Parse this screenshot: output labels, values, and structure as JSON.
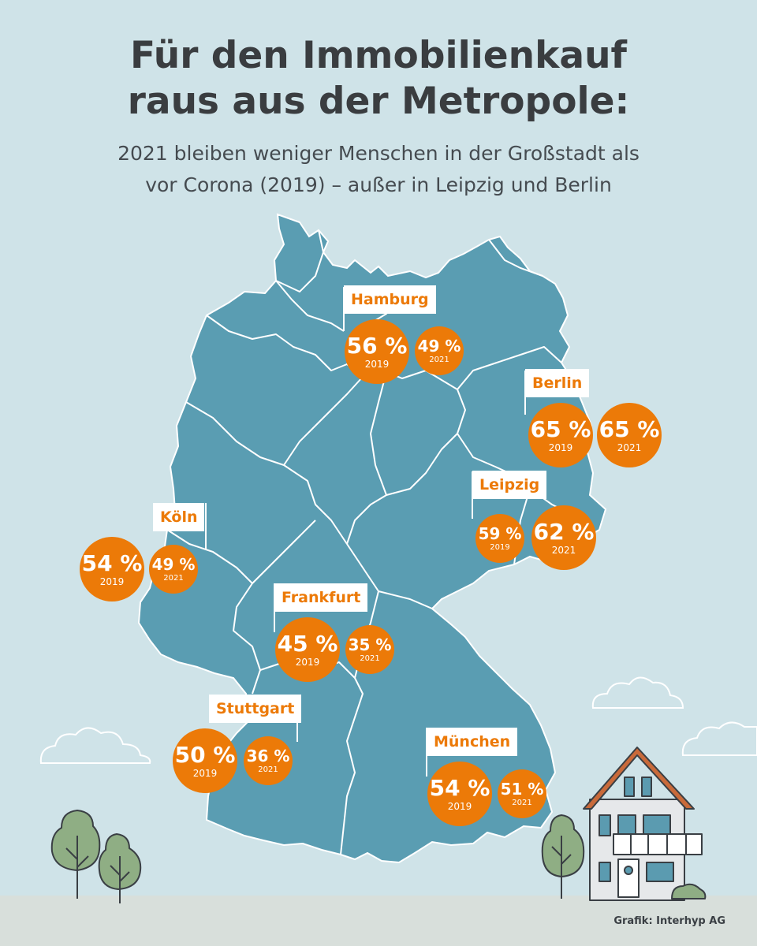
{
  "title": "Für den Immobilienkauf raus aus der Metropole:",
  "title_line1": "Für den Immobilienkauf",
  "title_line2": "raus aus der Metropole:",
  "subtitle_line1": "2021 bleiben weniger Menschen in der Großstadt als",
  "subtitle_line2": "vor Corona (2019) – außer in Leipzig und Berlin",
  "colors": {
    "background": "#cfe3e8",
    "map_fill": "#5a9db2",
    "border": "#ffffff",
    "accent": "#ec7a08",
    "ground": "#d8dfdb",
    "tree": "#8fae84"
  },
  "cities": [
    {
      "name": "Hamburg",
      "v2019": "56 %",
      "v2021": "49 %",
      "y2019": "2019",
      "y2021": "2021"
    },
    {
      "name": "Berlin",
      "v2019": "65 %",
      "v2021": "65 %",
      "y2019": "2019",
      "y2021": "2021"
    },
    {
      "name": "Leipzig",
      "v2019": "59 %",
      "v2021": "62 %",
      "y2019": "2019",
      "y2021": "2021"
    },
    {
      "name": "Köln",
      "v2019": "54 %",
      "v2021": "49 %",
      "y2019": "2019",
      "y2021": "2021"
    },
    {
      "name": "Frankfurt",
      "v2019": "45 %",
      "v2021": "35 %",
      "y2019": "2019",
      "y2021": "2021"
    },
    {
      "name": "Stuttgart",
      "v2019": "50 %",
      "v2021": "36 %",
      "y2019": "2019",
      "y2021": "2021"
    },
    {
      "name": "München",
      "v2019": "54 %",
      "v2021": "51 %",
      "y2019": "2019",
      "y2021": "2021"
    }
  ],
  "credit": "Grafik: Interhyp AG"
}
